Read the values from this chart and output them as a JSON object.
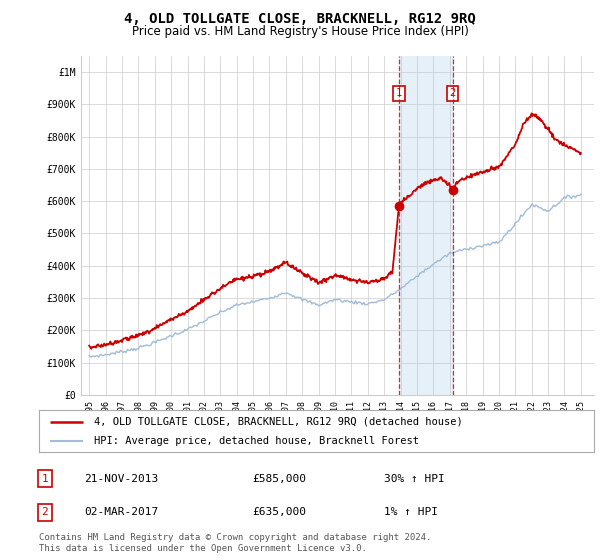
{
  "title": "4, OLD TOLLGATE CLOSE, BRACKNELL, RG12 9RQ",
  "subtitle": "Price paid vs. HM Land Registry's House Price Index (HPI)",
  "title_fontsize": 10,
  "subtitle_fontsize": 8.5,
  "background_color": "#ffffff",
  "plot_bg_color": "#ffffff",
  "grid_color": "#cccccc",
  "ylim": [
    0,
    1050000
  ],
  "yticks": [
    0,
    100000,
    200000,
    300000,
    400000,
    500000,
    600000,
    700000,
    800000,
    900000,
    1000000
  ],
  "ytick_labels": [
    "£0",
    "£100K",
    "£200K",
    "£300K",
    "£400K",
    "£500K",
    "£600K",
    "£700K",
    "£800K",
    "£900K",
    "£1M"
  ],
  "hpi_color": "#a0bcd8",
  "price_color": "#cc0000",
  "sale1_date": 2013.9,
  "sale1_price": 585000,
  "sale1_label": "1",
  "sale2_date": 2017.17,
  "sale2_price": 635000,
  "sale2_label": "2",
  "shade_color": "#daeaf7",
  "legend_entries": [
    {
      "label": "4, OLD TOLLGATE CLOSE, BRACKNELL, RG12 9RQ (detached house)",
      "color": "#cc0000",
      "lw": 1.8
    },
    {
      "label": "HPI: Average price, detached house, Bracknell Forest",
      "color": "#a0bcd8",
      "lw": 1.5
    }
  ],
  "table_rows": [
    {
      "num": "1",
      "date": "21-NOV-2013",
      "price": "£585,000",
      "hpi": "30% ↑ HPI"
    },
    {
      "num": "2",
      "date": "02-MAR-2017",
      "price": "£635,000",
      "hpi": "1% ↑ HPI"
    }
  ],
  "footnote": "Contains HM Land Registry data © Crown copyright and database right 2024.\nThis data is licensed under the Open Government Licence v3.0.",
  "xmin": 1994.5,
  "xmax": 2025.8
}
